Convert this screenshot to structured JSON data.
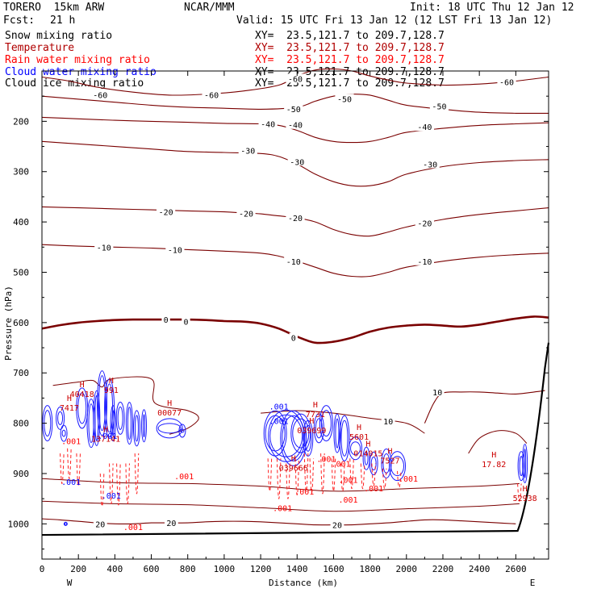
{
  "header": {
    "model": "TORERO  15km ARW",
    "org": "NCAR/MMM",
    "init": "Init: 18 UTC Thu 12 Jan 12",
    "fcst_label": "Fcst:",
    "fcst_value": "21 h",
    "valid": "Valid: 15 UTC Fri 13 Jan 12 (12 LST Fri 13 Jan 12)"
  },
  "fields": [
    {
      "name": "Snow mixing ratio",
      "xy": "XY=  23.5,121.7 to 209.7,128.7",
      "color": "#000000",
      "xy_color": "#000000"
    },
    {
      "name": "Temperature",
      "xy": "XY=  23.5,121.7 to 209.7,128.7",
      "color": "#b00000",
      "xy_color": "#b00000"
    },
    {
      "name": "Rain water mixing ratio",
      "xy": "XY=  23.5,121.7 to 209.7,128.7",
      "color": "#ff0000",
      "xy_color": "#ff0000"
    },
    {
      "name": "Cloud water mixing ratio",
      "xy": "XY=  23.5,121.7 to 209.7,128.7",
      "color": "#0000ff",
      "xy_color": "#000000"
    },
    {
      "name": "Cloud ice mixing ratio",
      "xy": "XY=  23.5,121.7 to 209.7,128.7",
      "color": "#000000",
      "xy_color": "#000000"
    }
  ],
  "chart_data": {
    "type": "contour-cross-section",
    "xlabel": "Distance (km)",
    "ylabel": "Pressure (hPa)",
    "xlim": [
      0,
      2780
    ],
    "ylim": [
      1070,
      100
    ],
    "xticks": [
      0,
      200,
      400,
      600,
      800,
      1000,
      1200,
      1400,
      1600,
      1800,
      2000,
      2200,
      2400,
      2600
    ],
    "yticks": [
      200,
      300,
      400,
      500,
      600,
      700,
      800,
      900,
      1000
    ],
    "x_end_labels": {
      "left": "W",
      "right": "E"
    },
    "temperature_isotherms_C": [
      {
        "level": -60,
        "x": [
          0,
          150,
          300,
          500,
          700,
          900,
          1100,
          1300,
          1400,
          1500,
          1600,
          1700,
          1800,
          1900,
          2000,
          2200,
          2400,
          2600,
          2780
        ],
        "p": [
          112,
          120,
          132,
          142,
          148,
          146,
          140,
          128,
          110,
          98,
          96,
          100,
          110,
          118,
          124,
          128,
          126,
          120,
          112
        ],
        "labels": [
          [
            320,
            147
          ],
          [
            930,
            147
          ],
          [
            1390,
            115
          ],
          [
            2550,
            122
          ]
        ]
      },
      {
        "level": -50,
        "x": [
          0,
          200,
          400,
          600,
          800,
          1000,
          1200,
          1400,
          1500,
          1600,
          1700,
          1800,
          1900,
          2000,
          2200,
          2400,
          2600,
          2780
        ],
        "p": [
          150,
          156,
          162,
          168,
          172,
          174,
          176,
          172,
          160,
          150,
          146,
          148,
          158,
          168,
          176,
          182,
          184,
          184
        ],
        "labels": [
          [
            1380,
            175
          ],
          [
            1660,
            155
          ],
          [
            2180,
            170
          ]
        ]
      },
      {
        "level": -40,
        "x": [
          0,
          200,
          400,
          600,
          800,
          1000,
          1200,
          1300,
          1400,
          1500,
          1600,
          1700,
          1800,
          1900,
          2000,
          2200,
          2400,
          2600,
          2780
        ],
        "p": [
          192,
          195,
          198,
          200,
          202,
          204,
          205,
          208,
          218,
          232,
          240,
          242,
          240,
          232,
          222,
          214,
          208,
          205,
          203
        ],
        "labels": [
          [
            1240,
            205
          ],
          [
            1390,
            207
          ],
          [
            2100,
            211
          ]
        ]
      },
      {
        "level": -30,
        "x": [
          0,
          200,
          400,
          600,
          800,
          1000,
          1200,
          1300,
          1400,
          1500,
          1600,
          1700,
          1800,
          1900,
          2000,
          2200,
          2400,
          2600,
          2780
        ],
        "p": [
          240,
          245,
          250,
          255,
          260,
          262,
          264,
          270,
          285,
          305,
          320,
          328,
          328,
          320,
          305,
          290,
          282,
          278,
          276
        ],
        "labels": [
          [
            1130,
            258
          ],
          [
            1400,
            280
          ],
          [
            2130,
            285
          ]
        ]
      },
      {
        "level": -20,
        "x": [
          0,
          200,
          400,
          600,
          800,
          1000,
          1100,
          1200,
          1300,
          1400,
          1500,
          1600,
          1700,
          1800,
          1900,
          2000,
          2200,
          2400,
          2600,
          2780
        ],
        "p": [
          370,
          372,
          374,
          376,
          378,
          380,
          382,
          384,
          388,
          392,
          400,
          415,
          425,
          428,
          420,
          410,
          395,
          385,
          378,
          372
        ],
        "labels": [
          [
            680,
            380
          ],
          [
            1120,
            383
          ],
          [
            1390,
            392
          ],
          [
            2100,
            402
          ]
        ]
      },
      {
        "level": -10,
        "x": [
          0,
          200,
          400,
          600,
          800,
          1000,
          1200,
          1300,
          1400,
          1500,
          1600,
          1700,
          1800,
          1900,
          2000,
          2200,
          2400,
          2600,
          2780
        ],
        "p": [
          445,
          448,
          450,
          452,
          455,
          458,
          462,
          468,
          478,
          490,
          502,
          508,
          508,
          500,
          490,
          478,
          470,
          465,
          462
        ],
        "labels": [
          [
            340,
            450
          ],
          [
            730,
            455
          ],
          [
            1380,
            478
          ],
          [
            2100,
            478
          ]
        ]
      },
      {
        "level": 0,
        "x": [
          0,
          100,
          200,
          300,
          400,
          500,
          600,
          700,
          800,
          900,
          1000,
          1100,
          1200,
          1300,
          1400,
          1500,
          1600,
          1700,
          1800,
          1900,
          2000,
          2100,
          2200,
          2300,
          2400,
          2500,
          2600,
          2700,
          2780
        ],
        "p": [
          612,
          605,
          600,
          597,
          595,
          594,
          594,
          594,
          594,
          595,
          597,
          598,
          602,
          612,
          628,
          640,
          638,
          630,
          618,
          610,
          606,
          604,
          606,
          608,
          604,
          598,
          592,
          588,
          590
        ],
        "labels": [
          [
            680,
            594
          ],
          [
            790,
            598
          ],
          [
            1380,
            630
          ]
        ],
        "bold": true
      },
      {
        "level": 10,
        "x": [
          2100,
          2150,
          2200,
          2300,
          2400,
          2500,
          2600,
          2700,
          2760
        ],
        "p": [
          800,
          760,
          740,
          738,
          738,
          740,
          742,
          738,
          735
        ],
        "labels": [
          [
            2170,
            738
          ],
          [
            1900,
            796
          ]
        ]
      },
      {
        "level": 20,
        "x": [
          0,
          100,
          200,
          300,
          400,
          500,
          600,
          700,
          800,
          900,
          1000,
          1100,
          1200,
          1300,
          1400,
          1500,
          1600,
          1700,
          1800,
          1900,
          2000,
          2100,
          2200,
          2300,
          2400,
          2500,
          2600
        ],
        "p": [
          990,
          992,
          995,
          998,
          1000,
          1000,
          998,
          998,
          998,
          996,
          995,
          995,
          996,
          998,
          1000,
          1002,
          1002,
          1002,
          1000,
          998,
          995,
          992,
          992,
          994,
          996,
          998,
          1000
        ],
        "labels": [
          [
            320,
            1000
          ],
          [
            710,
            998
          ],
          [
            1620,
            1002
          ]
        ]
      }
    ],
    "highs": [
      {
        "x": 220,
        "p": 738,
        "value": "40418"
      },
      {
        "x": 380,
        "p": 730,
        "value": "991"
      },
      {
        "x": 150,
        "p": 765,
        "value": "7417"
      },
      {
        "x": 350,
        "p": 827,
        "value": "137141"
      },
      {
        "x": 700,
        "p": 775,
        "value": "00077"
      },
      {
        "x": 1500,
        "p": 778,
        "value": "7731"
      },
      {
        "x": 1480,
        "p": 810,
        "value": "039699"
      },
      {
        "x": 1740,
        "p": 823,
        "value": "5601"
      },
      {
        "x": 1790,
        "p": 856,
        "value": "014015"
      },
      {
        "x": 1910,
        "p": 870,
        "value": "7527"
      },
      {
        "x": 1380,
        "p": 885,
        "value": "039666"
      },
      {
        "x": 2480,
        "p": 878,
        "value": "17.82"
      },
      {
        "x": 2650,
        "p": 945,
        "value": "52938"
      }
    ],
    "small_labels": [
      {
        "x": 160,
        "p": 835,
        "text": ".001",
        "color": "#ff0000"
      },
      {
        "x": 360,
        "p": 825,
        "text": ".001",
        "color": "#0000ff"
      },
      {
        "x": 1300,
        "p": 795,
        "text": ".001",
        "color": "#0000ff"
      },
      {
        "x": 1300,
        "p": 766,
        "text": ".001",
        "color": "#0000ff"
      },
      {
        "x": 1560,
        "p": 870,
        "text": ".001",
        "color": "#ff0000"
      },
      {
        "x": 1640,
        "p": 880,
        "text": ".001",
        "color": "#ff0000"
      },
      {
        "x": 1680,
        "p": 912,
        "text": ".001",
        "color": "#ff0000"
      },
      {
        "x": 1820,
        "p": 929,
        "text": ".001",
        "color": "#ff0000"
      },
      {
        "x": 1440,
        "p": 935,
        "text": ".001",
        "color": "#ff0000"
      },
      {
        "x": 380,
        "p": 943,
        "text": ".001",
        "color": "#0000ff"
      },
      {
        "x": 780,
        "p": 905,
        "text": ".001",
        "color": "#ff0000"
      },
      {
        "x": 1680,
        "p": 951,
        "text": ".001",
        "color": "#ff0000"
      },
      {
        "x": 1320,
        "p": 968,
        "text": ".001",
        "color": "#ff0000"
      },
      {
        "x": 500,
        "p": 1006,
        "text": ".001",
        "color": "#ff0000"
      },
      {
        "x": 160,
        "p": 916,
        "text": ".001",
        "color": "#0000ff"
      },
      {
        "x": 2010,
        "p": 910,
        "text": ".001",
        "color": "#ff0000"
      }
    ]
  }
}
